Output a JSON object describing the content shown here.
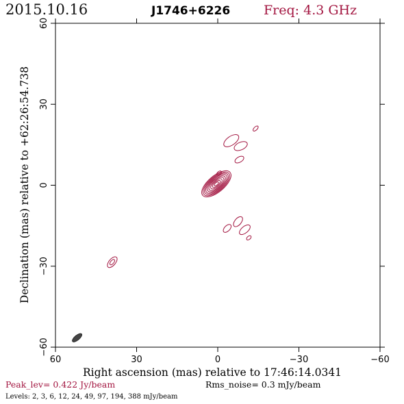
{
  "header": {
    "date": "2015.10.16",
    "source": "J1746+6226",
    "frequency": "Freq: 4.3 GHz"
  },
  "footer": {
    "peak": "Peak_lev=  0.422 Jy/beam",
    "rms": "Rms_noise=  0.3 mJy/beam",
    "levels": "Levels:  2,  3,  6,  12,  24,  49,  97,  194,  388 mJy/beam"
  },
  "colors": {
    "contour": "#a2143f",
    "beam": "#444444",
    "axis": "#000000"
  },
  "chart_data": {
    "type": "contour",
    "xlabel": "Right ascension (mas) relative to 17:46:14.0341",
    "ylabel": "Declination (mas) relative to +62:26:54.738",
    "xlim": [
      60,
      -60
    ],
    "ylim": [
      -60,
      60
    ],
    "x_ticks": [
      60,
      30,
      0,
      -30,
      -60
    ],
    "y_ticks": [
      -60,
      -30,
      0,
      30,
      60
    ],
    "x_tick_labels": [
      "60",
      "30",
      "0",
      "−30",
      "−60"
    ],
    "y_tick_labels": [
      "−60",
      "−30",
      "0",
      "30",
      "60"
    ],
    "contour_levels_mjy": [
      2,
      3,
      6,
      12,
      24,
      49,
      97,
      194,
      388
    ],
    "core": {
      "center": [
        0.5,
        0.5
      ],
      "pa_deg": -40,
      "rings": [
        {
          "a": 6.6,
          "b": 3.0
        },
        {
          "a": 6.0,
          "b": 2.7
        },
        {
          "a": 5.4,
          "b": 2.4
        },
        {
          "a": 4.8,
          "b": 2.1
        },
        {
          "a": 4.1,
          "b": 1.8
        },
        {
          "a": 3.4,
          "b": 1.5
        },
        {
          "a": 2.6,
          "b": 1.15
        },
        {
          "a": 1.8,
          "b": 0.8
        },
        {
          "a": 1.0,
          "b": 0.45
        }
      ]
    },
    "components": [
      {
        "x": -5.0,
        "y": 16.5,
        "a": 3.2,
        "b": 1.6,
        "pa_deg": -35
      },
      {
        "x": -8.5,
        "y": 14.5,
        "a": 2.6,
        "b": 1.4,
        "pa_deg": -25
      },
      {
        "x": -8.0,
        "y": 9.5,
        "a": 1.8,
        "b": 1.0,
        "pa_deg": -30
      },
      {
        "x": -14.0,
        "y": 21.0,
        "a": 1.2,
        "b": 0.6,
        "pa_deg": -45
      },
      {
        "x": -0.5,
        "y": 4.5,
        "a": 1.0,
        "b": 0.6,
        "pa_deg": -40
      },
      {
        "x": -7.5,
        "y": -13.5,
        "a": 2.2,
        "b": 1.2,
        "pa_deg": -50
      },
      {
        "x": -10.0,
        "y": -16.5,
        "a": 2.4,
        "b": 1.2,
        "pa_deg": -40
      },
      {
        "x": -3.5,
        "y": -16.0,
        "a": 1.8,
        "b": 1.0,
        "pa_deg": -45
      },
      {
        "x": -11.5,
        "y": -19.5,
        "a": 1.0,
        "b": 0.6,
        "pa_deg": -40
      },
      {
        "x": 39.0,
        "y": -28.5,
        "a": 2.4,
        "b": 1.2,
        "pa_deg": -50
      },
      {
        "x": 39.0,
        "y": -28.5,
        "a": 1.2,
        "b": 0.6,
        "pa_deg": -50
      }
    ],
    "beam": {
      "x": 52.0,
      "y": -56.5,
      "a": 2.2,
      "b": 0.9,
      "pa_deg": -40
    }
  }
}
